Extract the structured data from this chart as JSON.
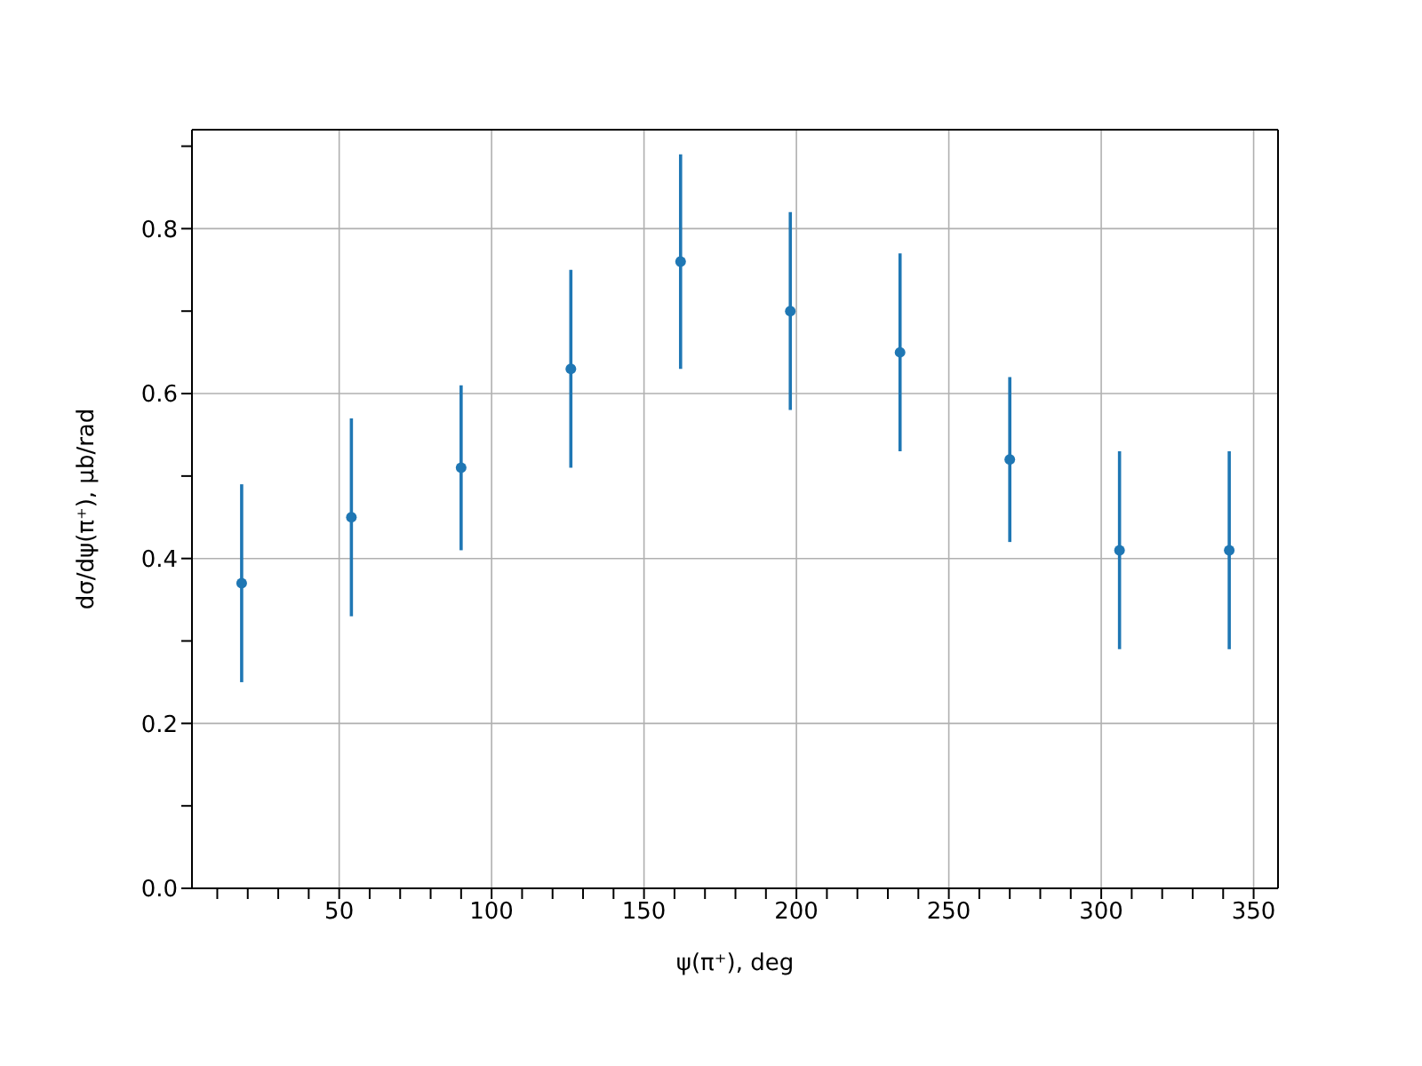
{
  "chart_data": {
    "type": "scatter",
    "xlabel": "ψ(π⁺), deg",
    "ylabel": "dσ/dψ(π⁺), μb/rad",
    "x": [
      18,
      54,
      90,
      126,
      162,
      198,
      234,
      270,
      306,
      342
    ],
    "series": [
      {
        "color": "#1f77b4",
        "values": [
          0.37,
          0.45,
          0.51,
          0.63,
          0.76,
          0.7,
          0.65,
          0.52,
          0.41,
          0.41
        ],
        "errors": [
          0.12,
          0.12,
          0.1,
          0.12,
          0.13,
          0.12,
          0.12,
          0.1,
          0.12,
          0.12
        ]
      }
    ],
    "xlim": [
      1.7,
      358
    ],
    "xticks": [
      {
        "value": 10,
        "label": null
      },
      {
        "value": 20,
        "label": null
      },
      {
        "value": 30,
        "label": null
      },
      {
        "value": 40,
        "label": null
      },
      50,
      {
        "value": 60,
        "label": null
      },
      {
        "value": 70,
        "label": null
      },
      {
        "value": 80,
        "label": null
      },
      {
        "value": 90,
        "label": null
      },
      100,
      {
        "value": 110,
        "label": null
      },
      {
        "value": 120,
        "label": null
      },
      {
        "value": 130,
        "label": null
      },
      {
        "value": 140,
        "label": null
      },
      150,
      {
        "value": 160,
        "label": null
      },
      {
        "value": 170,
        "label": null
      },
      {
        "value": 180,
        "label": null
      },
      {
        "value": 190,
        "label": null
      },
      200,
      {
        "value": 210,
        "label": null
      },
      {
        "value": 220,
        "label": null
      },
      {
        "value": 230,
        "label": null
      },
      {
        "value": 240,
        "label": null
      },
      250,
      {
        "value": 260,
        "label": null
      },
      {
        "value": 270,
        "label": null
      },
      {
        "value": 280,
        "label": null
      },
      {
        "value": 290,
        "label": null
      },
      300,
      {
        "value": 310,
        "label": null
      },
      {
        "value": 320,
        "label": null
      },
      {
        "value": 330,
        "label": null
      },
      {
        "value": 340,
        "label": null
      },
      350
    ],
    "ylim": [
      0,
      0.92
    ],
    "yticks": [
      {
        "value": 0,
        "label": "0.0"
      },
      {
        "value": 0.1,
        "label": null
      },
      {
        "value": 0.2,
        "label": "0.2"
      },
      {
        "value": 0.3,
        "label": null
      },
      {
        "value": 0.4,
        "label": "0.4"
      },
      {
        "value": 0.5,
        "label": null
      },
      {
        "value": 0.6,
        "label": "0.6"
      },
      {
        "value": 0.7,
        "label": null
      },
      {
        "value": 0.8,
        "label": "0.8"
      },
      {
        "value": 0.9,
        "label": null
      }
    ],
    "grid": true,
    "marker": "circle"
  }
}
